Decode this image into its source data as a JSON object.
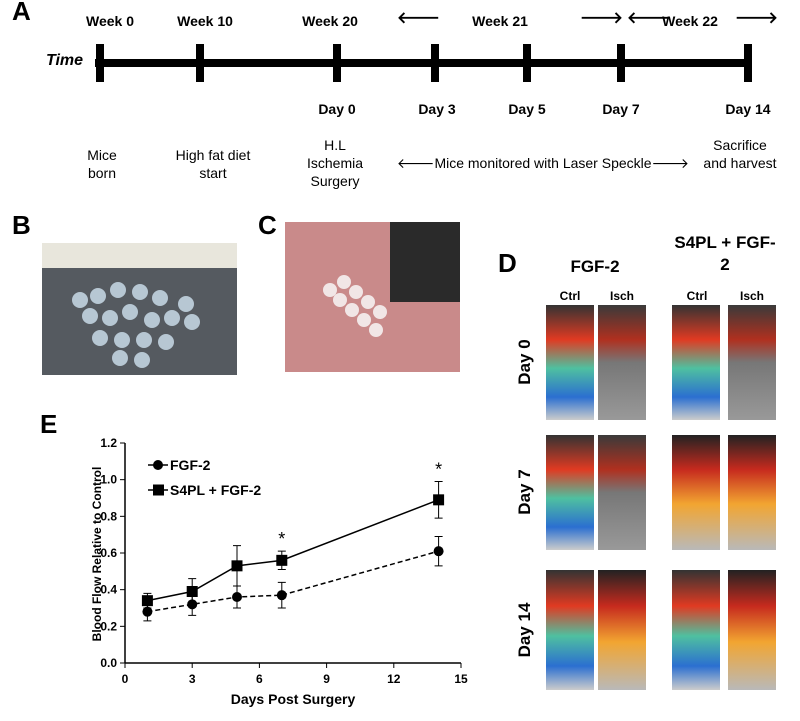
{
  "panel_a": {
    "label": "A",
    "axis_label": "Time",
    "weeks": [
      "Week 0",
      "Week 10",
      "Week 20",
      "Week 21",
      "Week 22"
    ],
    "days": [
      "Day 0",
      "Day 3",
      "Day 5",
      "Day 7",
      "Day 14"
    ],
    "events": [
      "Mice born",
      "High fat diet start",
      "H.L Ischemia Surgery",
      "Mice monitored with Laser Speckle",
      "Sacrifice and harvest"
    ]
  },
  "panel_b": {
    "label": "B"
  },
  "panel_c": {
    "label": "C"
  },
  "panel_d": {
    "label": "D",
    "groups": [
      "FGF-2",
      "S4PL + FGF-2"
    ],
    "columns": [
      "Ctrl",
      "Isch",
      "Ctrl",
      "Isch"
    ],
    "rows": [
      "Day 0",
      "Day 7",
      "Day 14"
    ]
  },
  "chart_data": {
    "type": "line",
    "panel_label": "E",
    "x_label": "Days Post Surgery",
    "y_label": "Blood Flow Relative to Control",
    "x": [
      1,
      3,
      5,
      7,
      14
    ],
    "series": [
      {
        "name": "FGF-2",
        "color": "#000000",
        "line_style": "dashed",
        "marker": "circle",
        "values": [
          0.28,
          0.32,
          0.36,
          0.37,
          0.61
        ],
        "errors": [
          0.05,
          0.06,
          0.06,
          0.07,
          0.08
        ]
      },
      {
        "name": "S4PL + FGF-2",
        "color": "#000000",
        "line_style": "solid",
        "marker": "square",
        "values": [
          0.34,
          0.39,
          0.53,
          0.56,
          0.89
        ],
        "errors": [
          0.04,
          0.07,
          0.11,
          0.05,
          0.1
        ]
      }
    ],
    "xlim": [
      0,
      15
    ],
    "xticks": [
      0,
      3,
      6,
      9,
      12,
      15
    ],
    "ylim": [
      0,
      1.2
    ],
    "yticks": [
      {
        "value": 0,
        "label": "0.0"
      },
      {
        "value": 0.2,
        "label": "0.2"
      },
      {
        "value": 0.4,
        "label": "0.4"
      },
      {
        "value": 0.6,
        "label": "0.6"
      },
      {
        "value": 0.8,
        "label": "0.8"
      },
      {
        "value": 1,
        "label": "1.0"
      },
      {
        "value": 1.2,
        "label": "1.2"
      }
    ],
    "annotations": [
      {
        "x": 7,
        "text": "*"
      },
      {
        "x": 14,
        "text": "*"
      }
    ]
  }
}
